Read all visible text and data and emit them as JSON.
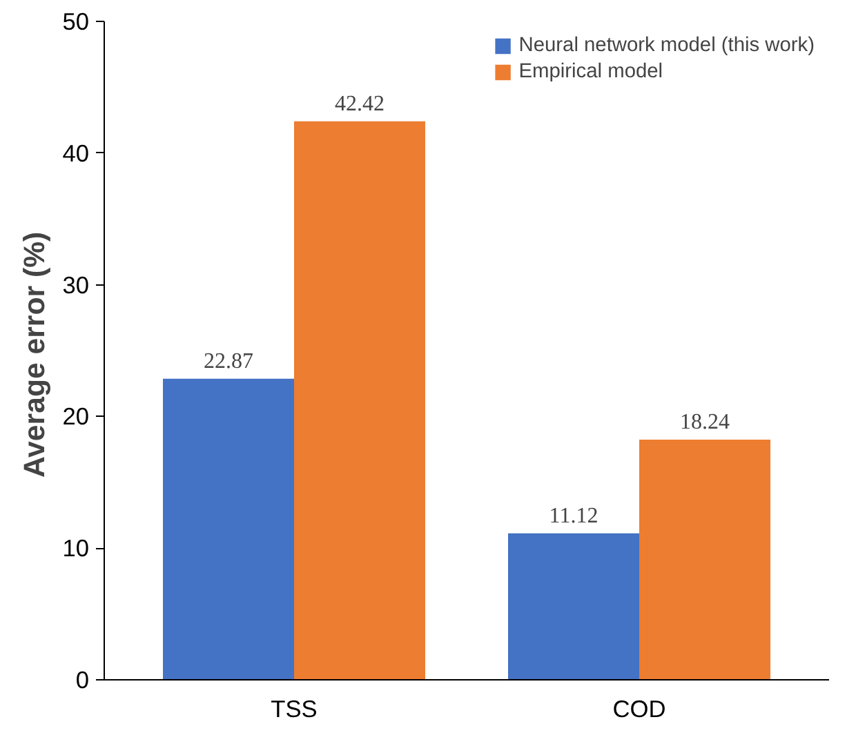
{
  "chart_data": {
    "type": "bar",
    "ylabel": "Average error  (%)",
    "categories": [
      "TSS",
      "COD"
    ],
    "series": [
      {
        "name": "Neural network model (this work)",
        "color": "#4472c4",
        "values": [
          22.87,
          11.12
        ]
      },
      {
        "name": "Empirical model",
        "color": "#ed7d31",
        "values": [
          42.42,
          18.24
        ]
      }
    ],
    "ylim": [
      0,
      50
    ],
    "yticks": [
      0,
      10,
      20,
      30,
      40,
      50
    ],
    "grid": false,
    "legend": "top right",
    "data_labels": true
  }
}
